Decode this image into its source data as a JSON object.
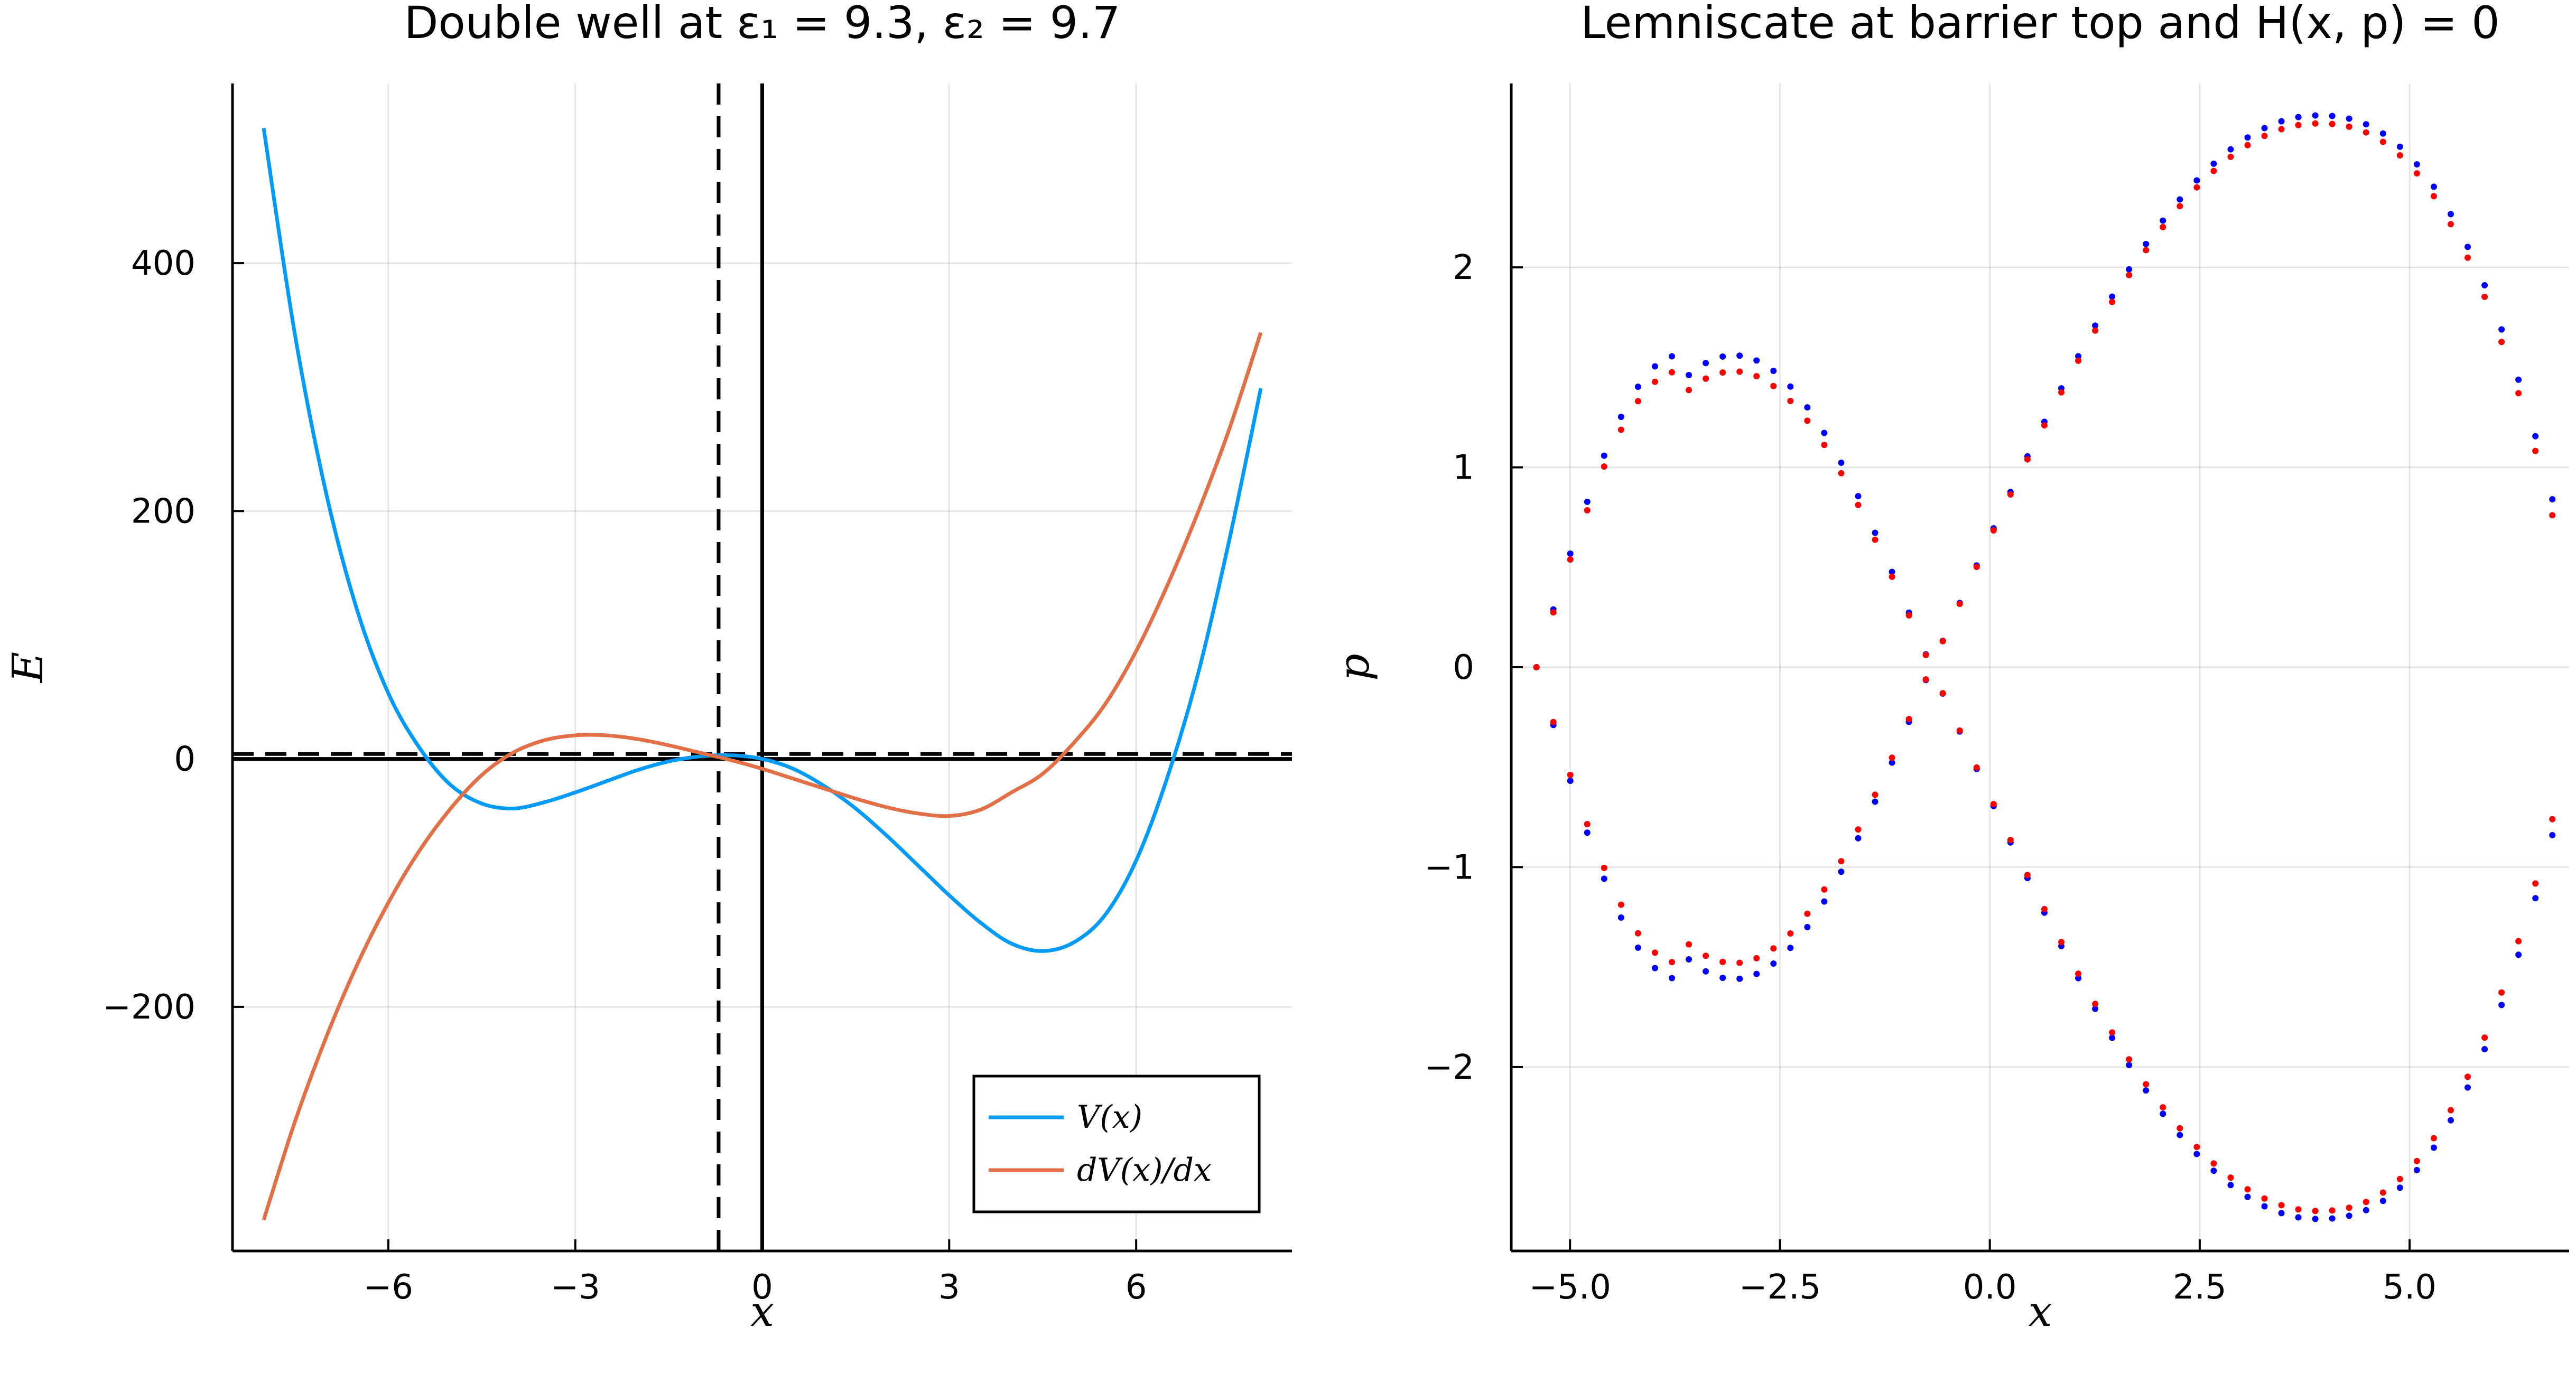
{
  "chart_data": [
    {
      "type": "line",
      "title": "Double well at ε₁ = 9.3, ε₂ = 9.7",
      "xlabel": "x",
      "ylabel": "E",
      "xlim": [
        -8.5,
        8.5
      ],
      "ylim": [
        -397,
        545
      ],
      "xticks": [
        -6,
        -3,
        0,
        3,
        6
      ],
      "xtick_labels": [
        "−6",
        "−3",
        "0",
        "3",
        "6"
      ],
      "yticks": [
        -200,
        0,
        200,
        400
      ],
      "ytick_labels": [
        "−200",
        "0",
        "200",
        "400"
      ],
      "grid": true,
      "legend_position": "bottom-right",
      "series": [
        {
          "name": "V(x)",
          "color": "#009AFA",
          "x": [
            -8.0,
            -7.5,
            -7.0,
            -6.5,
            -6.0,
            -5.5,
            -5.0,
            -4.5,
            -4.0,
            -3.5,
            -3.0,
            -2.5,
            -2.0,
            -1.5,
            -1.0,
            -0.5,
            0.0,
            0.5,
            1.0,
            1.5,
            2.0,
            2.5,
            3.0,
            3.5,
            4.0,
            4.5,
            5.0,
            5.5,
            6.0,
            6.5,
            7.0,
            7.5,
            8.0
          ],
          "y": [
            509.0,
            343.0,
            215.0,
            120.0,
            53.0,
            9.0,
            -21.0,
            -36.0,
            -40.0,
            -35.0,
            -27.0,
            -18.0,
            -9.0,
            -2.0,
            2.0,
            3.0,
            0.0,
            -8.0,
            -22.0,
            -40.0,
            -62.0,
            -86.0,
            -110.0,
            -132.0,
            -149.0,
            -155.0,
            -148.0,
            -126.0,
            -82.0,
            -15.0,
            70.0,
            178.0,
            299.0
          ]
        },
        {
          "name": "dV(x)/dx",
          "color": "#E26F46",
          "x": [
            -8.0,
            -7.5,
            -7.0,
            -6.5,
            -6.0,
            -5.5,
            -5.0,
            -4.5,
            -4.0,
            -3.5,
            -3.0,
            -2.5,
            -2.0,
            -1.5,
            -1.0,
            -0.5,
            0.0,
            0.5,
            1.0,
            1.5,
            2.0,
            2.5,
            3.0,
            3.5,
            4.0,
            4.5,
            5.0,
            5.5,
            6.0,
            6.5,
            7.0,
            7.5,
            8.0
          ],
          "y": [
            -372.0,
            -293.0,
            -225.0,
            -166.0,
            -116.0,
            -74.0,
            -40.0,
            -13.0,
            5.0,
            15.0,
            19.0,
            19.0,
            16.0,
            11.0,
            5.0,
            -1.0,
            -8.0,
            -16.0,
            -24.0,
            -32.0,
            -39.0,
            -44.0,
            -46.0,
            -41.0,
            -27.0,
            -12.0,
            13.0,
            44.0,
            87.0,
            140.0,
            200.0,
            267.0,
            344.0
          ]
        }
      ],
      "reference_lines": [
        {
          "orientation": "horizontal",
          "value": 0,
          "style": "solid"
        },
        {
          "orientation": "horizontal",
          "value": 4,
          "style": "dashed"
        },
        {
          "orientation": "vertical",
          "value": 0,
          "style": "solid"
        },
        {
          "orientation": "vertical",
          "value": -0.7,
          "style": "dashed"
        }
      ]
    },
    {
      "type": "scatter",
      "title": "Lemniscate at barrier top and H(x, p) = 0",
      "xlabel": "x",
      "ylabel": "p",
      "xlim": [
        -5.7,
        6.9
      ],
      "ylim": [
        -2.92,
        2.92
      ],
      "xticks": [
        -5.0,
        -2.5,
        0.0,
        2.5,
        5.0
      ],
      "xtick_labels": [
        "−5.0",
        "−2.5",
        "0.0",
        "2.5",
        "5.0"
      ],
      "yticks": [
        -2,
        -1,
        0,
        1,
        2
      ],
      "ytick_labels": [
        "−2",
        "−1",
        "0",
        "1",
        "2"
      ],
      "grid": true,
      "curve_params": {
        "x_min": -5.4,
        "x_max": 6.7,
        "x_cross": -0.7,
        "x_left_peak": -3.7,
        "x_right_peak": 3.9,
        "n_points": 60
      },
      "series": [
        {
          "color": "#0000FF",
          "left_amplitude": 1.56,
          "right_amplitude": 2.76,
          "edge_value": 0.84
        },
        {
          "color": "#FF0000",
          "left_amplitude": 1.48,
          "right_amplitude": 2.72,
          "edge_value": 0.76
        }
      ]
    }
  ]
}
